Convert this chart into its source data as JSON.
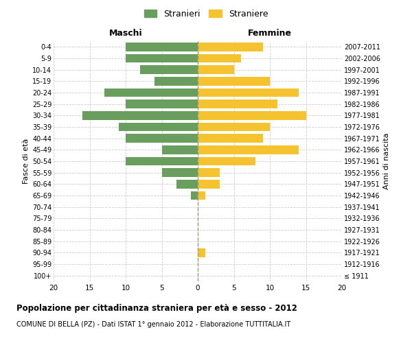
{
  "age_groups": [
    "100+",
    "95-99",
    "90-94",
    "85-89",
    "80-84",
    "75-79",
    "70-74",
    "65-69",
    "60-64",
    "55-59",
    "50-54",
    "45-49",
    "40-44",
    "35-39",
    "30-34",
    "25-29",
    "20-24",
    "15-19",
    "10-14",
    "5-9",
    "0-4"
  ],
  "birth_years": [
    "≤ 1911",
    "1912-1916",
    "1917-1921",
    "1922-1926",
    "1927-1931",
    "1932-1936",
    "1937-1941",
    "1942-1946",
    "1947-1951",
    "1952-1956",
    "1957-1961",
    "1962-1966",
    "1967-1971",
    "1972-1976",
    "1977-1981",
    "1982-1986",
    "1987-1991",
    "1992-1996",
    "1997-2001",
    "2002-2006",
    "2007-2011"
  ],
  "maschi": [
    0,
    0,
    0,
    0,
    0,
    0,
    0,
    1,
    3,
    5,
    10,
    5,
    10,
    11,
    16,
    10,
    13,
    6,
    8,
    10,
    10
  ],
  "femmine": [
    0,
    0,
    1,
    0,
    0,
    0,
    0,
    1,
    3,
    3,
    8,
    14,
    9,
    10,
    15,
    11,
    14,
    10,
    5,
    6,
    9
  ],
  "color_maschi": "#6a9e5f",
  "color_femmine": "#f5c330",
  "xlim": 20,
  "title": "Popolazione per cittadinanza straniera per età e sesso - 2012",
  "subtitle": "COMUNE DI BELLA (PZ) - Dati ISTAT 1° gennaio 2012 - Elaborazione TUTTITALIA.IT",
  "label_maschi": "Stranieri",
  "label_femmine": "Straniere",
  "ylabel_left": "Fasce di età",
  "ylabel_right": "Anni di nascita",
  "xlabel_left": "Maschi",
  "xlabel_right": "Femmine",
  "background_color": "#ffffff",
  "grid_color": "#cccccc"
}
